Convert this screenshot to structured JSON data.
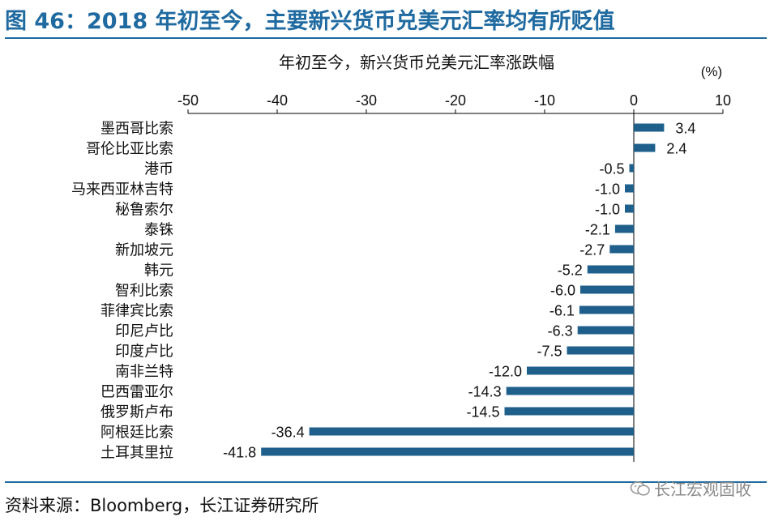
{
  "header": {
    "title": "图 46：2018 年初至今，主要新兴货币兑美元汇率均有所贬值"
  },
  "footer": {
    "source": "资料来源：Bloomberg，长江证券研究所",
    "watermark": "长江宏观固收"
  },
  "colors": {
    "accent": "#1f6aa0",
    "bar": "#1f5f8b"
  },
  "chart_data": {
    "type": "bar",
    "orientation": "horizontal",
    "title": "年初至今，新兴货币兑美元汇率涨跌幅",
    "unit": "(%)",
    "xlim": [
      -50,
      10
    ],
    "xticks": [
      "-50",
      "-40",
      "-30",
      "-20",
      "-10",
      "0",
      "10"
    ],
    "xaxis_position": "top",
    "grid": false,
    "legend": "none",
    "categories": [
      "墨西哥比索",
      "哥伦比亚比索",
      "港币",
      "马来西亚林吉特",
      "秘鲁索尔",
      "泰铢",
      "新加坡元",
      "韩元",
      "智利比索",
      "菲律宾比索",
      "印尼卢比",
      "印度卢比",
      "南非兰特",
      "巴西雷亚尔",
      "俄罗斯卢布",
      "阿根廷比索",
      "土耳其里拉"
    ],
    "values": [
      3.4,
      2.4,
      -0.5,
      -1.0,
      -1.0,
      -2.1,
      -2.7,
      -5.2,
      -6.0,
      -6.1,
      -6.3,
      -7.5,
      -12.0,
      -14.3,
      -14.5,
      -36.4,
      -41.8
    ],
    "value_labels": [
      "3.4",
      "2.4",
      "-0.5",
      "-1.0",
      "-1.0",
      "-2.1",
      "-2.7",
      "-5.2",
      "-6.0",
      "-6.1",
      "-6.3",
      "-7.5",
      "-12.0",
      "-14.3",
      "-14.5",
      "-36.4",
      "-41.8"
    ]
  }
}
